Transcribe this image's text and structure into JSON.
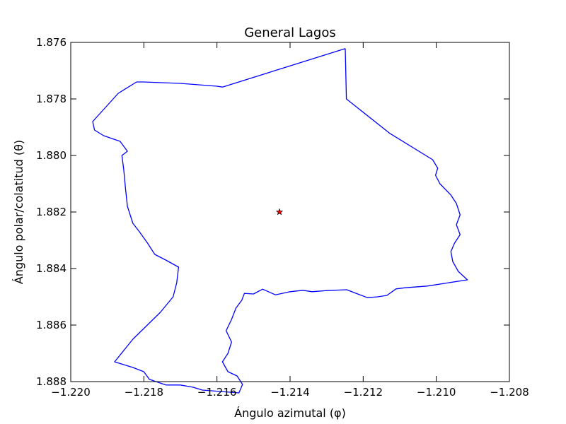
{
  "chart_data": {
    "type": "line",
    "title": "General Lagos",
    "xlabel": "Ángulo azimutal (φ)",
    "ylabel": "Ángulo polar/colatitud (θ)",
    "xlim": [
      -1.22,
      -1.208
    ],
    "ylim": [
      1.876,
      1.888
    ],
    "y_inverted": true,
    "grid": false,
    "x_ticks": [
      -1.22,
      -1.218,
      -1.216,
      -1.214,
      -1.212,
      -1.21,
      -1.208
    ],
    "y_ticks": [
      1.876,
      1.878,
      1.88,
      1.882,
      1.884,
      1.886,
      1.888
    ],
    "x_tick_labels": [
      "−1.220",
      "−1.218",
      "−1.216",
      "−1.214",
      "−1.212",
      "−1.210",
      "−1.208"
    ],
    "y_tick_labels": [
      "1.876",
      "1.878",
      "1.880",
      "1.882",
      "1.884",
      "1.886",
      "1.888"
    ],
    "series": [
      {
        "kind": "line",
        "color": "#0000ff",
        "points": [
          [
            -1.21249,
            1.87622
          ],
          [
            -1.21246,
            1.878
          ],
          [
            -1.21128,
            1.87921
          ],
          [
            -1.2101,
            1.88015
          ],
          [
            -1.20996,
            1.88045
          ],
          [
            -1.21002,
            1.8807
          ],
          [
            -1.2099,
            1.881
          ],
          [
            -1.2096,
            1.8814
          ],
          [
            -1.20945,
            1.8817
          ],
          [
            -1.20935,
            1.8821
          ],
          [
            -1.20945,
            1.88245
          ],
          [
            -1.20935,
            1.8828
          ],
          [
            -1.2095,
            1.8831
          ],
          [
            -1.2096,
            1.8834
          ],
          [
            -1.20955,
            1.88375
          ],
          [
            -1.2094,
            1.8841
          ],
          [
            -1.20915,
            1.8844
          ],
          [
            -1.20965,
            1.8845
          ],
          [
            -1.21025,
            1.88462
          ],
          [
            -1.21085,
            1.88468
          ],
          [
            -1.2111,
            1.88472
          ],
          [
            -1.21135,
            1.88495
          ],
          [
            -1.2116,
            1.885
          ],
          [
            -1.21188,
            1.88503
          ],
          [
            -1.21215,
            1.8849
          ],
          [
            -1.21245,
            1.88475
          ],
          [
            -1.213,
            1.88478
          ],
          [
            -1.2134,
            1.88482
          ],
          [
            -1.21365,
            1.88477
          ],
          [
            -1.214,
            1.88482
          ],
          [
            -1.2144,
            1.88493
          ],
          [
            -1.21475,
            1.88473
          ],
          [
            -1.215,
            1.8849
          ],
          [
            -1.21525,
            1.88488
          ],
          [
            -1.21532,
            1.88512
          ],
          [
            -1.21548,
            1.8854
          ],
          [
            -1.2156,
            1.8858
          ],
          [
            -1.21575,
            1.8862
          ],
          [
            -1.2156,
            1.8866
          ],
          [
            -1.2157,
            1.887
          ],
          [
            -1.21585,
            1.8873
          ],
          [
            -1.2157,
            1.88765
          ],
          [
            -1.21545,
            1.8878
          ],
          [
            -1.2153,
            1.8881
          ],
          [
            -1.2154,
            1.8884
          ],
          [
            -1.2159,
            1.88835
          ],
          [
            -1.2164,
            1.8883
          ],
          [
            -1.21665,
            1.8882
          ],
          [
            -1.217,
            1.88812
          ],
          [
            -1.2174,
            1.88812
          ],
          [
            -1.21785,
            1.88792
          ],
          [
            -1.218,
            1.88765
          ],
          [
            -1.2183,
            1.8875
          ],
          [
            -1.2188,
            1.8873
          ],
          [
            -1.2183,
            1.8865
          ],
          [
            -1.21755,
            1.88555
          ],
          [
            -1.2172,
            1.885
          ],
          [
            -1.2171,
            1.8845
          ],
          [
            -1.21705,
            1.88395
          ],
          [
            -1.2174,
            1.8837
          ],
          [
            -1.2177,
            1.8835
          ],
          [
            -1.2179,
            1.8831
          ],
          [
            -1.21812,
            1.8827
          ],
          [
            -1.2183,
            1.8824
          ],
          [
            -1.21845,
            1.8818
          ],
          [
            -1.2185,
            1.8812
          ],
          [
            -1.21855,
            1.8805
          ],
          [
            -1.2186,
            1.88
          ],
          [
            -1.21845,
            1.87985
          ],
          [
            -1.21865,
            1.8795
          ],
          [
            -1.2191,
            1.8793
          ],
          [
            -1.21935,
            1.8791
          ],
          [
            -1.2194,
            1.8788
          ],
          [
            -1.21905,
            1.8783
          ],
          [
            -1.2187,
            1.8778
          ],
          [
            -1.2182,
            1.8774
          ],
          [
            -1.218,
            1.8774
          ],
          [
            -1.217,
            1.87745
          ],
          [
            -1.216,
            1.87755
          ],
          [
            -1.21585,
            1.87758
          ],
          [
            -1.21249,
            1.87622
          ]
        ]
      },
      {
        "kind": "marker",
        "marker": "star",
        "color": "#ff0000",
        "points": [
          [
            -1.21429,
            1.882
          ]
        ]
      }
    ]
  }
}
